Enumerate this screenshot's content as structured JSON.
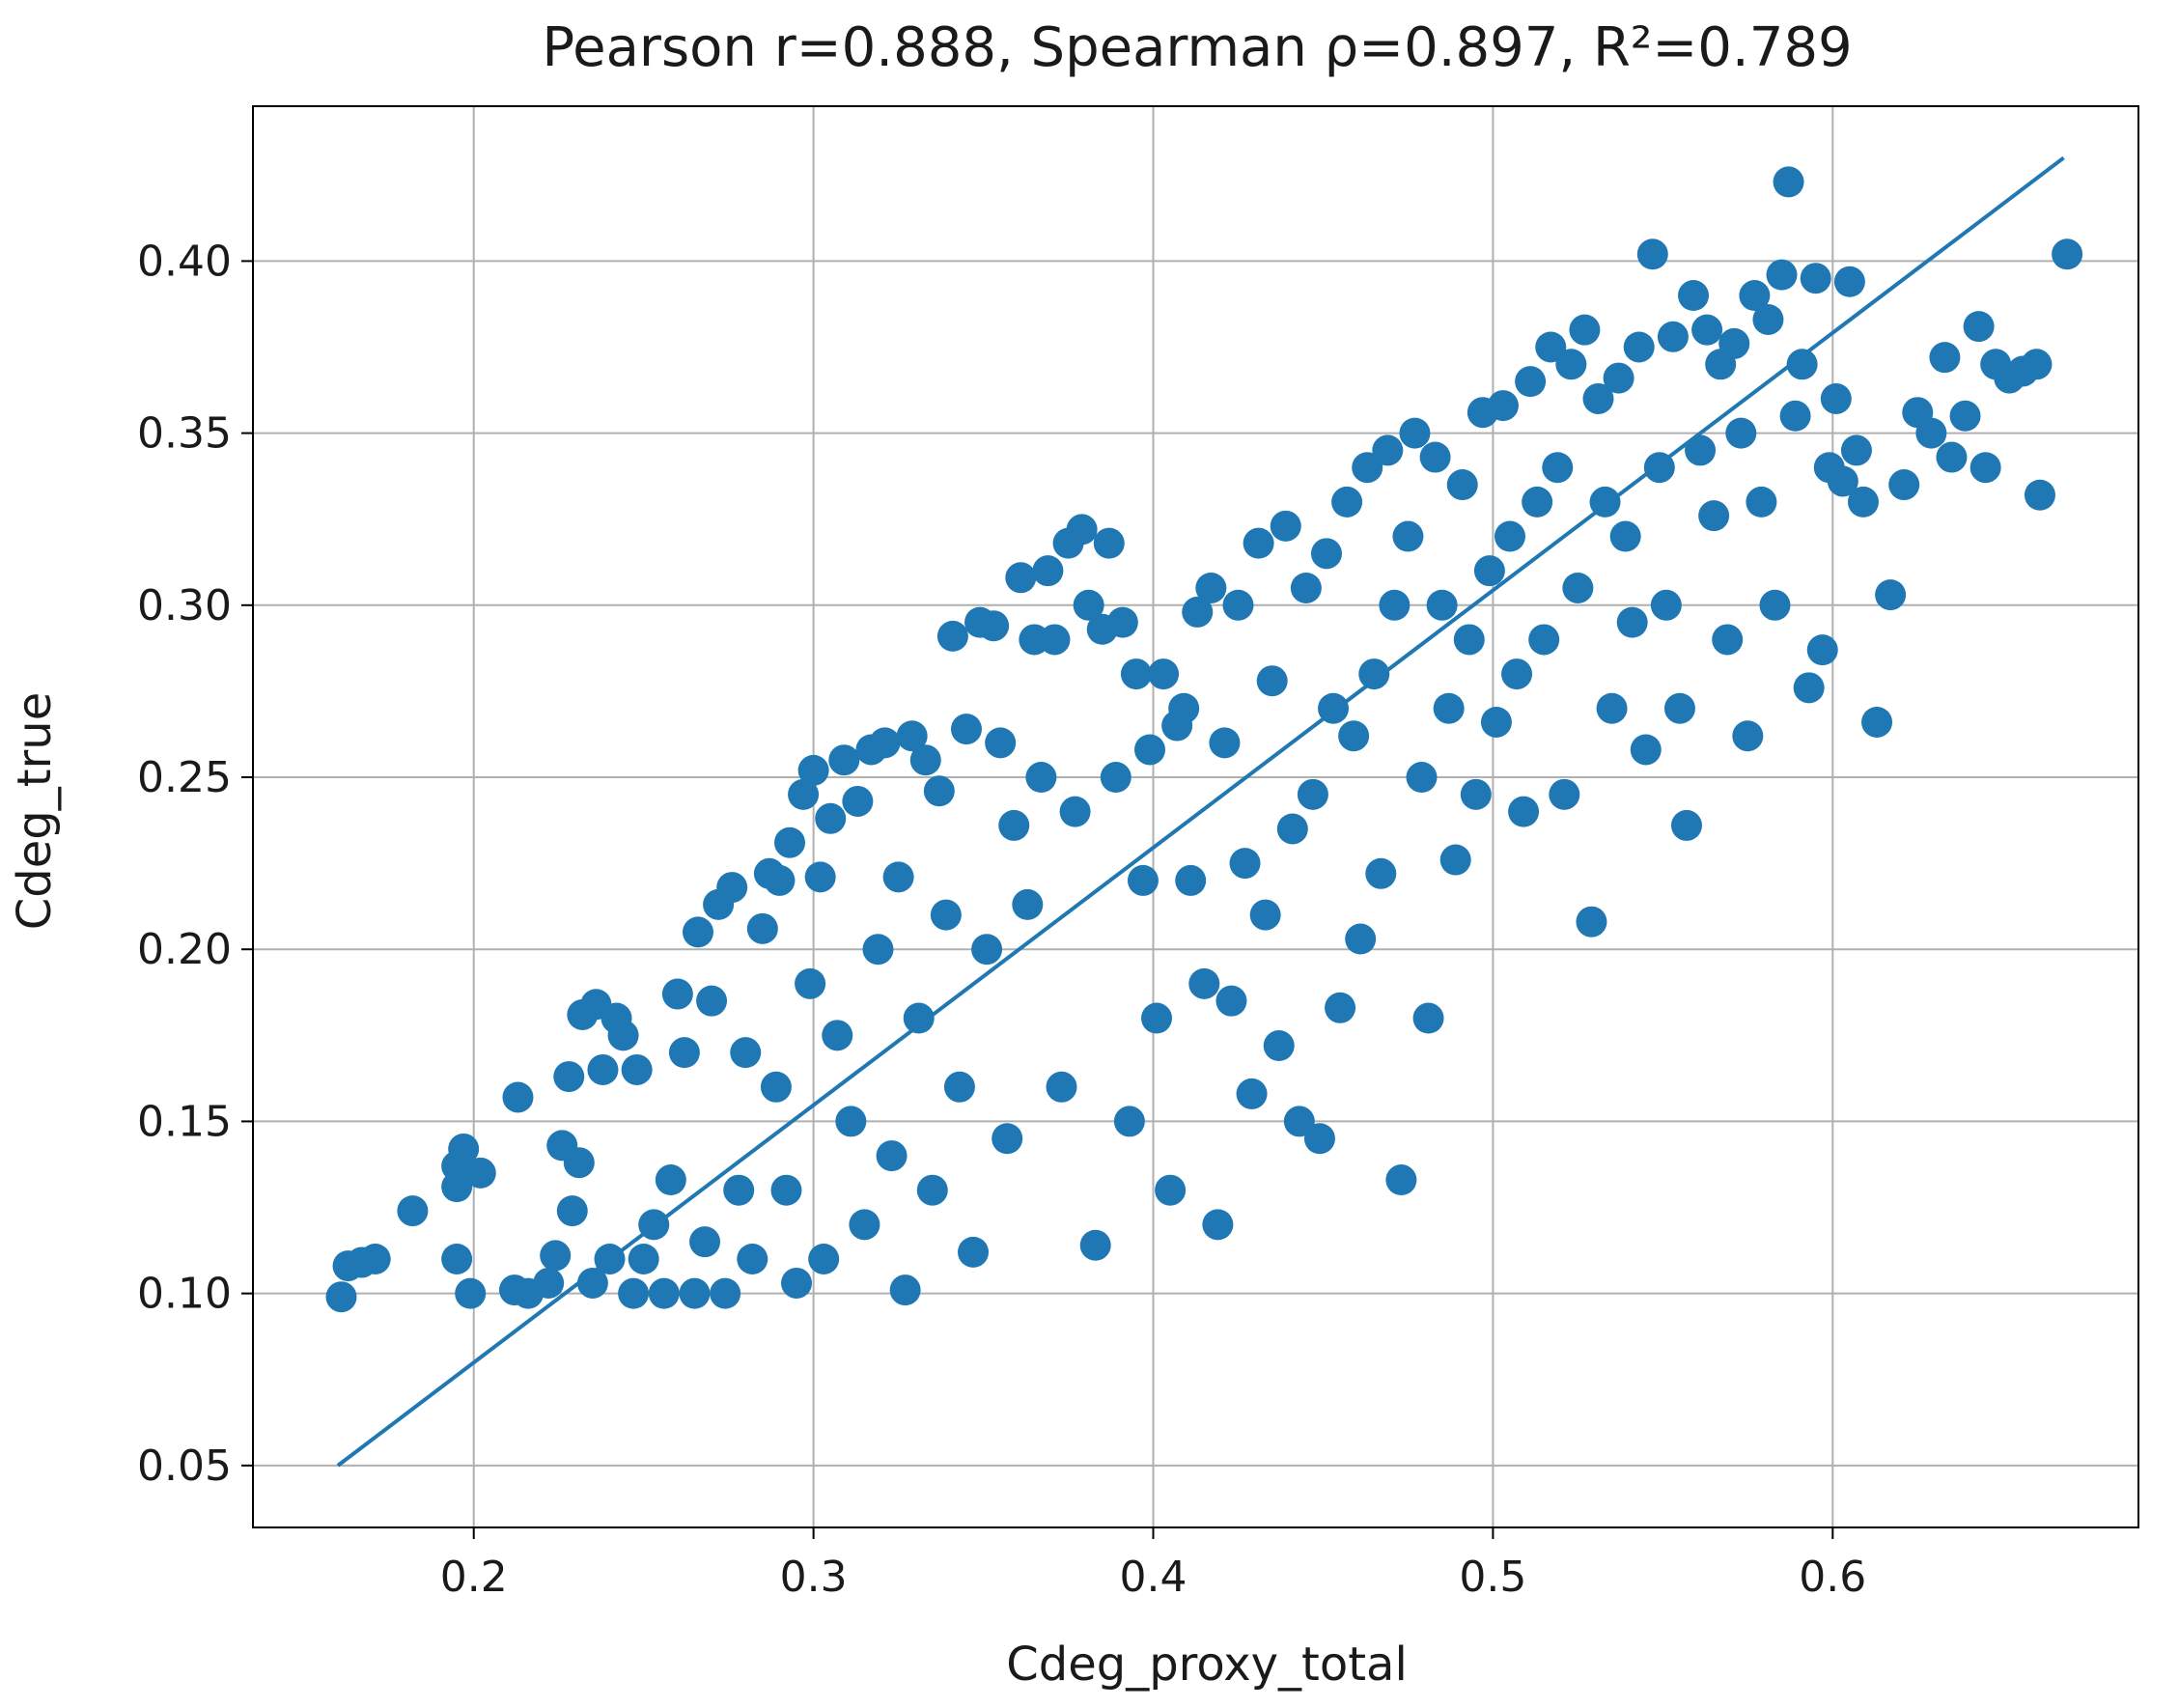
{
  "chart_data": {
    "type": "scatter",
    "title": "Pearson r=0.888, Spearman ρ=0.897, R²=0.789",
    "xlabel": "Cdeg_proxy_total",
    "ylabel": "Cdeg_true",
    "xlim": [
      0.135,
      0.69
    ],
    "ylim": [
      0.032,
      0.445
    ],
    "xticks": [
      0.2,
      0.3,
      0.4,
      0.5,
      0.6
    ],
    "xtick_labels": [
      "0.2",
      "0.3",
      "0.4",
      "0.5",
      "0.6"
    ],
    "yticks": [
      0.05,
      0.1,
      0.15,
      0.2,
      0.25,
      0.3,
      0.35,
      0.4
    ],
    "ytick_labels": [
      "0.05",
      "0.10",
      "0.15",
      "0.20",
      "0.25",
      "0.30",
      "0.35",
      "0.40"
    ],
    "grid": true,
    "marker_color": "#1f77b4",
    "fit_line": {
      "x": [
        0.16,
        0.668
      ],
      "y": [
        0.05,
        0.43
      ]
    },
    "points": [
      [
        0.161,
        0.099
      ],
      [
        0.163,
        0.108
      ],
      [
        0.167,
        0.109
      ],
      [
        0.171,
        0.11
      ],
      [
        0.182,
        0.124
      ],
      [
        0.195,
        0.11
      ],
      [
        0.195,
        0.131
      ],
      [
        0.195,
        0.137
      ],
      [
        0.197,
        0.142
      ],
      [
        0.199,
        0.1
      ],
      [
        0.202,
        0.135
      ],
      [
        0.212,
        0.101
      ],
      [
        0.213,
        0.157
      ],
      [
        0.216,
        0.1
      ],
      [
        0.222,
        0.103
      ],
      [
        0.224,
        0.111
      ],
      [
        0.226,
        0.143
      ],
      [
        0.228,
        0.163
      ],
      [
        0.229,
        0.124
      ],
      [
        0.231,
        0.138
      ],
      [
        0.232,
        0.181
      ],
      [
        0.235,
        0.103
      ],
      [
        0.236,
        0.184
      ],
      [
        0.238,
        0.165
      ],
      [
        0.24,
        0.11
      ],
      [
        0.242,
        0.18
      ],
      [
        0.244,
        0.175
      ],
      [
        0.247,
        0.1
      ],
      [
        0.248,
        0.165
      ],
      [
        0.25,
        0.11
      ],
      [
        0.253,
        0.12
      ],
      [
        0.256,
        0.1
      ],
      [
        0.258,
        0.133
      ],
      [
        0.26,
        0.187
      ],
      [
        0.262,
        0.17
      ],
      [
        0.265,
        0.1
      ],
      [
        0.266,
        0.205
      ],
      [
        0.268,
        0.115
      ],
      [
        0.27,
        0.185
      ],
      [
        0.272,
        0.213
      ],
      [
        0.274,
        0.1
      ],
      [
        0.276,
        0.218
      ],
      [
        0.278,
        0.13
      ],
      [
        0.28,
        0.17
      ],
      [
        0.282,
        0.11
      ],
      [
        0.285,
        0.206
      ],
      [
        0.287,
        0.222
      ],
      [
        0.289,
        0.16
      ],
      [
        0.29,
        0.22
      ],
      [
        0.292,
        0.13
      ],
      [
        0.293,
        0.231
      ],
      [
        0.295,
        0.103
      ],
      [
        0.297,
        0.245
      ],
      [
        0.299,
        0.19
      ],
      [
        0.3,
        0.252
      ],
      [
        0.302,
        0.221
      ],
      [
        0.303,
        0.11
      ],
      [
        0.305,
        0.238
      ],
      [
        0.307,
        0.175
      ],
      [
        0.309,
        0.255
      ],
      [
        0.311,
        0.15
      ],
      [
        0.313,
        0.243
      ],
      [
        0.315,
        0.12
      ],
      [
        0.317,
        0.258
      ],
      [
        0.319,
        0.2
      ],
      [
        0.321,
        0.26
      ],
      [
        0.323,
        0.14
      ],
      [
        0.325,
        0.221
      ],
      [
        0.327,
        0.101
      ],
      [
        0.329,
        0.262
      ],
      [
        0.331,
        0.18
      ],
      [
        0.333,
        0.255
      ],
      [
        0.335,
        0.13
      ],
      [
        0.337,
        0.246
      ],
      [
        0.339,
        0.21
      ],
      [
        0.341,
        0.291
      ],
      [
        0.343,
        0.16
      ],
      [
        0.345,
        0.264
      ],
      [
        0.347,
        0.112
      ],
      [
        0.349,
        0.295
      ],
      [
        0.351,
        0.2
      ],
      [
        0.353,
        0.294
      ],
      [
        0.355,
        0.26
      ],
      [
        0.357,
        0.145
      ],
      [
        0.359,
        0.236
      ],
      [
        0.361,
        0.308
      ],
      [
        0.363,
        0.213
      ],
      [
        0.365,
        0.29
      ],
      [
        0.367,
        0.25
      ],
      [
        0.369,
        0.31
      ],
      [
        0.371,
        0.29
      ],
      [
        0.373,
        0.16
      ],
      [
        0.375,
        0.318
      ],
      [
        0.377,
        0.24
      ],
      [
        0.379,
        0.322
      ],
      [
        0.381,
        0.3
      ],
      [
        0.383,
        0.114
      ],
      [
        0.385,
        0.293
      ],
      [
        0.387,
        0.318
      ],
      [
        0.389,
        0.25
      ],
      [
        0.391,
        0.295
      ],
      [
        0.393,
        0.15
      ],
      [
        0.395,
        0.28
      ],
      [
        0.397,
        0.22
      ],
      [
        0.399,
        0.258
      ],
      [
        0.401,
        0.18
      ],
      [
        0.403,
        0.28
      ],
      [
        0.405,
        0.13
      ],
      [
        0.407,
        0.265
      ],
      [
        0.409,
        0.27
      ],
      [
        0.411,
        0.22
      ],
      [
        0.413,
        0.298
      ],
      [
        0.415,
        0.19
      ],
      [
        0.417,
        0.305
      ],
      [
        0.419,
        0.12
      ],
      [
        0.421,
        0.26
      ],
      [
        0.423,
        0.185
      ],
      [
        0.425,
        0.3
      ],
      [
        0.427,
        0.225
      ],
      [
        0.429,
        0.158
      ],
      [
        0.431,
        0.318
      ],
      [
        0.433,
        0.21
      ],
      [
        0.435,
        0.278
      ],
      [
        0.437,
        0.172
      ],
      [
        0.439,
        0.323
      ],
      [
        0.441,
        0.235
      ],
      [
        0.443,
        0.15
      ],
      [
        0.445,
        0.305
      ],
      [
        0.447,
        0.245
      ],
      [
        0.449,
        0.145
      ],
      [
        0.451,
        0.315
      ],
      [
        0.453,
        0.27
      ],
      [
        0.455,
        0.183
      ],
      [
        0.457,
        0.33
      ],
      [
        0.459,
        0.262
      ],
      [
        0.461,
        0.203
      ],
      [
        0.463,
        0.34
      ],
      [
        0.465,
        0.28
      ],
      [
        0.467,
        0.222
      ],
      [
        0.469,
        0.345
      ],
      [
        0.471,
        0.3
      ],
      [
        0.473,
        0.133
      ],
      [
        0.475,
        0.32
      ],
      [
        0.477,
        0.35
      ],
      [
        0.479,
        0.25
      ],
      [
        0.481,
        0.18
      ],
      [
        0.483,
        0.343
      ],
      [
        0.485,
        0.3
      ],
      [
        0.487,
        0.27
      ],
      [
        0.489,
        0.226
      ],
      [
        0.491,
        0.335
      ],
      [
        0.493,
        0.29
      ],
      [
        0.495,
        0.245
      ],
      [
        0.497,
        0.356
      ],
      [
        0.499,
        0.31
      ],
      [
        0.501,
        0.266
      ],
      [
        0.503,
        0.358
      ],
      [
        0.505,
        0.32
      ],
      [
        0.507,
        0.28
      ],
      [
        0.509,
        0.24
      ],
      [
        0.511,
        0.365
      ],
      [
        0.513,
        0.33
      ],
      [
        0.515,
        0.29
      ],
      [
        0.517,
        0.375
      ],
      [
        0.519,
        0.34
      ],
      [
        0.521,
        0.245
      ],
      [
        0.523,
        0.37
      ],
      [
        0.525,
        0.305
      ],
      [
        0.527,
        0.38
      ],
      [
        0.529,
        0.208
      ],
      [
        0.531,
        0.36
      ],
      [
        0.533,
        0.33
      ],
      [
        0.535,
        0.27
      ],
      [
        0.537,
        0.366
      ],
      [
        0.539,
        0.32
      ],
      [
        0.541,
        0.295
      ],
      [
        0.543,
        0.375
      ],
      [
        0.545,
        0.258
      ],
      [
        0.547,
        0.402
      ],
      [
        0.549,
        0.34
      ],
      [
        0.551,
        0.3
      ],
      [
        0.553,
        0.378
      ],
      [
        0.555,
        0.27
      ],
      [
        0.557,
        0.236
      ],
      [
        0.559,
        0.39
      ],
      [
        0.561,
        0.345
      ],
      [
        0.563,
        0.38
      ],
      [
        0.565,
        0.326
      ],
      [
        0.567,
        0.37
      ],
      [
        0.569,
        0.29
      ],
      [
        0.571,
        0.376
      ],
      [
        0.573,
        0.35
      ],
      [
        0.575,
        0.262
      ],
      [
        0.577,
        0.39
      ],
      [
        0.579,
        0.33
      ],
      [
        0.581,
        0.383
      ],
      [
        0.583,
        0.3
      ],
      [
        0.585,
        0.396
      ],
      [
        0.587,
        0.423
      ],
      [
        0.589,
        0.355
      ],
      [
        0.591,
        0.37
      ],
      [
        0.593,
        0.276
      ],
      [
        0.595,
        0.395
      ],
      [
        0.597,
        0.287
      ],
      [
        0.599,
        0.34
      ],
      [
        0.601,
        0.36
      ],
      [
        0.603,
        0.336
      ],
      [
        0.605,
        0.394
      ],
      [
        0.607,
        0.345
      ],
      [
        0.609,
        0.33
      ],
      [
        0.613,
        0.266
      ],
      [
        0.617,
        0.303
      ],
      [
        0.621,
        0.335
      ],
      [
        0.625,
        0.356
      ],
      [
        0.629,
        0.35
      ],
      [
        0.633,
        0.372
      ],
      [
        0.635,
        0.343
      ],
      [
        0.639,
        0.355
      ],
      [
        0.643,
        0.381
      ],
      [
        0.645,
        0.34
      ],
      [
        0.648,
        0.37
      ],
      [
        0.652,
        0.366
      ],
      [
        0.656,
        0.368
      ],
      [
        0.66,
        0.37
      ],
      [
        0.661,
        0.332
      ],
      [
        0.669,
        0.402
      ]
    ]
  }
}
